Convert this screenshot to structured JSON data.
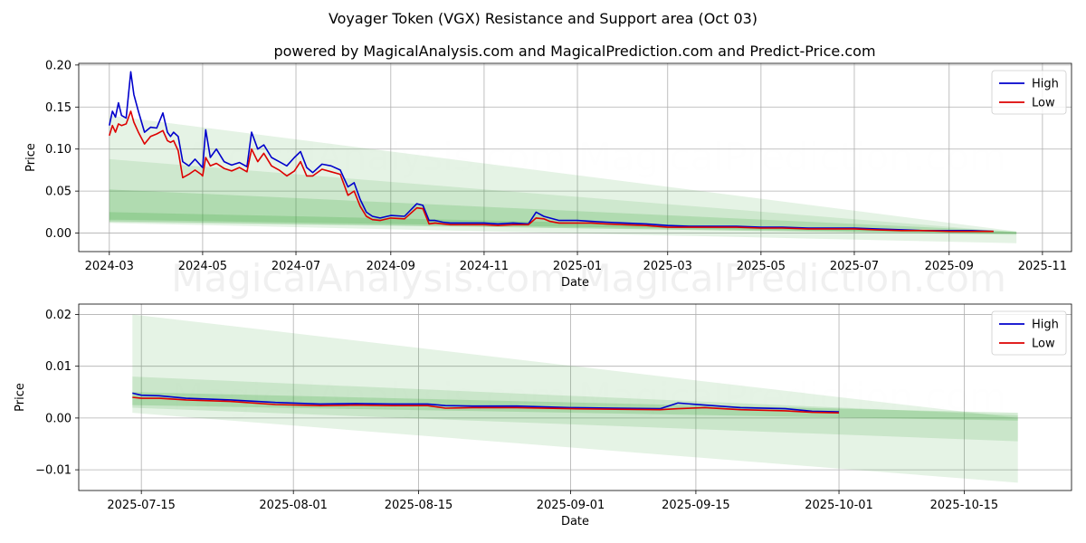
{
  "suptitle": "Voyager Token (VGX) Resistance and Support area (Oct 03)",
  "watermark_text": "MagicalAnalysis.com   MagicalPrediction.com",
  "chart_data": [
    {
      "type": "line",
      "title": "powered by MagicalAnalysis.com and MagicalPrediction.com and Predict-Price.com",
      "xlabel": "Date",
      "ylabel": "Price",
      "xlim": [
        "2024-02-10",
        "2025-11-20"
      ],
      "ylim": [
        -0.022,
        0.202
      ],
      "yticks": [
        0.0,
        0.05,
        0.1,
        0.15,
        0.2
      ],
      "ytick_labels": [
        "0.00",
        "0.05",
        "0.10",
        "0.15",
        "0.20"
      ],
      "xticks": [
        "2024-03-01",
        "2024-05-01",
        "2024-07-01",
        "2024-09-01",
        "2024-11-01",
        "2025-01-01",
        "2025-03-01",
        "2025-05-01",
        "2025-07-01",
        "2025-09-01",
        "2025-11-01"
      ],
      "xtick_labels": [
        "2024-03",
        "2024-05",
        "2024-07",
        "2024-09",
        "2024-11",
        "2025-01",
        "2025-03",
        "2025-05",
        "2025-07",
        "2025-09",
        "2025-11"
      ],
      "legend": [
        "High",
        "Low"
      ],
      "legend_loc": "upper right",
      "grid": true,
      "bands": [
        {
          "x": [
            "2024-03-01",
            "2025-10-15"
          ],
          "upper": [
            0.14,
            0.002
          ],
          "lower": [
            0.012,
            -0.012
          ],
          "color": "#2ca02c",
          "opacity": 0.12
        },
        {
          "x": [
            "2024-03-01",
            "2025-10-15"
          ],
          "upper": [
            0.088,
            0.001
          ],
          "lower": [
            0.013,
            -0.001
          ],
          "color": "#2ca02c",
          "opacity": 0.12
        },
        {
          "x": [
            "2024-03-01",
            "2025-10-15"
          ],
          "upper": [
            0.052,
            0.002
          ],
          "lower": [
            0.014,
            -0.002
          ],
          "color": "#2ca02c",
          "opacity": 0.18
        },
        {
          "x": [
            "2024-03-01",
            "2025-10-15"
          ],
          "upper": [
            0.025,
            0.001
          ],
          "lower": [
            0.016,
            -0.0005
          ],
          "color": "#2ca02c",
          "opacity": 0.2
        }
      ],
      "series": [
        {
          "name": "High",
          "color": "#0000cc",
          "x": [
            "2024-03-01",
            "2024-03-03",
            "2024-03-05",
            "2024-03-07",
            "2024-03-09",
            "2024-03-12",
            "2024-03-15",
            "2024-03-17",
            "2024-03-20",
            "2024-03-24",
            "2024-03-28",
            "2024-04-01",
            "2024-04-05",
            "2024-04-08",
            "2024-04-10",
            "2024-04-12",
            "2024-04-15",
            "2024-04-18",
            "2024-04-22",
            "2024-04-26",
            "2024-04-30",
            "2024-05-01",
            "2024-05-03",
            "2024-05-06",
            "2024-05-10",
            "2024-05-15",
            "2024-05-20",
            "2024-05-25",
            "2024-05-30",
            "2024-06-02",
            "2024-06-06",
            "2024-06-10",
            "2024-06-15",
            "2024-06-20",
            "2024-06-25",
            "2024-06-30",
            "2024-07-04",
            "2024-07-08",
            "2024-07-12",
            "2024-07-18",
            "2024-07-24",
            "2024-07-30",
            "2024-08-04",
            "2024-08-08",
            "2024-08-12",
            "2024-08-16",
            "2024-08-20",
            "2024-08-25",
            "2024-09-01",
            "2024-09-10",
            "2024-09-18",
            "2024-09-22",
            "2024-09-26",
            "2024-09-30",
            "2024-10-05",
            "2024-10-10",
            "2024-10-20",
            "2024-11-01",
            "2024-11-10",
            "2024-11-20",
            "2024-11-30",
            "2024-12-05",
            "2024-12-10",
            "2024-12-14",
            "2024-12-20",
            "2025-01-01",
            "2025-01-10",
            "2025-01-20",
            "2025-02-01",
            "2025-02-15",
            "2025-03-01",
            "2025-03-15",
            "2025-04-01",
            "2025-04-15",
            "2025-05-01",
            "2025-05-15",
            "2025-06-01",
            "2025-06-15",
            "2025-06-20",
            "2025-07-01",
            "2025-07-15",
            "2025-08-01",
            "2025-08-15",
            "2025-09-01",
            "2025-09-15",
            "2025-09-30"
          ],
          "values": [
            0.128,
            0.145,
            0.138,
            0.155,
            0.14,
            0.137,
            0.192,
            0.165,
            0.145,
            0.12,
            0.126,
            0.125,
            0.143,
            0.12,
            0.115,
            0.12,
            0.115,
            0.085,
            0.08,
            0.088,
            0.08,
            0.078,
            0.123,
            0.09,
            0.1,
            0.085,
            0.081,
            0.084,
            0.079,
            0.12,
            0.1,
            0.105,
            0.09,
            0.085,
            0.08,
            0.09,
            0.097,
            0.078,
            0.072,
            0.082,
            0.08,
            0.075,
            0.055,
            0.06,
            0.04,
            0.025,
            0.02,
            0.018,
            0.021,
            0.02,
            0.035,
            0.033,
            0.015,
            0.015,
            0.013,
            0.012,
            0.012,
            0.012,
            0.011,
            0.012,
            0.011,
            0.025,
            0.02,
            0.018,
            0.015,
            0.015,
            0.014,
            0.013,
            0.012,
            0.011,
            0.009,
            0.008,
            0.008,
            0.008,
            0.007,
            0.007,
            0.006,
            0.006,
            0.006,
            0.006,
            0.005,
            0.004,
            0.003,
            0.003,
            0.003,
            0.002
          ]
        },
        {
          "name": "Low",
          "color": "#dd0000",
          "x": [
            "2024-03-01",
            "2024-03-03",
            "2024-03-05",
            "2024-03-07",
            "2024-03-09",
            "2024-03-12",
            "2024-03-15",
            "2024-03-17",
            "2024-03-20",
            "2024-03-24",
            "2024-03-28",
            "2024-04-01",
            "2024-04-05",
            "2024-04-08",
            "2024-04-10",
            "2024-04-12",
            "2024-04-15",
            "2024-04-18",
            "2024-04-22",
            "2024-04-26",
            "2024-04-30",
            "2024-05-01",
            "2024-05-03",
            "2024-05-06",
            "2024-05-10",
            "2024-05-15",
            "2024-05-20",
            "2024-05-25",
            "2024-05-30",
            "2024-06-02",
            "2024-06-06",
            "2024-06-10",
            "2024-06-15",
            "2024-06-20",
            "2024-06-25",
            "2024-06-30",
            "2024-07-04",
            "2024-07-08",
            "2024-07-12",
            "2024-07-18",
            "2024-07-24",
            "2024-07-30",
            "2024-08-04",
            "2024-08-08",
            "2024-08-12",
            "2024-08-16",
            "2024-08-20",
            "2024-08-25",
            "2024-09-01",
            "2024-09-10",
            "2024-09-18",
            "2024-09-22",
            "2024-09-26",
            "2024-09-30",
            "2024-10-05",
            "2024-10-10",
            "2024-10-20",
            "2024-11-01",
            "2024-11-10",
            "2024-11-20",
            "2024-11-30",
            "2024-12-05",
            "2024-12-10",
            "2024-12-14",
            "2024-12-20",
            "2025-01-01",
            "2025-01-10",
            "2025-01-20",
            "2025-02-01",
            "2025-02-15",
            "2025-03-01",
            "2025-03-15",
            "2025-04-01",
            "2025-04-15",
            "2025-05-01",
            "2025-05-15",
            "2025-06-01",
            "2025-06-15",
            "2025-06-20",
            "2025-07-01",
            "2025-07-15",
            "2025-08-01",
            "2025-08-15",
            "2025-09-01",
            "2025-09-15",
            "2025-09-30"
          ],
          "values": [
            0.116,
            0.128,
            0.12,
            0.13,
            0.128,
            0.13,
            0.145,
            0.132,
            0.12,
            0.106,
            0.115,
            0.118,
            0.122,
            0.11,
            0.108,
            0.11,
            0.098,
            0.066,
            0.07,
            0.075,
            0.07,
            0.068,
            0.09,
            0.08,
            0.083,
            0.077,
            0.074,
            0.078,
            0.073,
            0.1,
            0.085,
            0.095,
            0.08,
            0.075,
            0.068,
            0.074,
            0.085,
            0.068,
            0.068,
            0.076,
            0.073,
            0.07,
            0.045,
            0.05,
            0.032,
            0.02,
            0.016,
            0.015,
            0.018,
            0.017,
            0.03,
            0.029,
            0.011,
            0.012,
            0.011,
            0.01,
            0.01,
            0.01,
            0.009,
            0.01,
            0.01,
            0.018,
            0.017,
            0.014,
            0.012,
            0.012,
            0.012,
            0.011,
            0.01,
            0.009,
            0.007,
            0.007,
            0.007,
            0.007,
            0.006,
            0.006,
            0.005,
            0.005,
            0.005,
            0.005,
            0.004,
            0.003,
            0.003,
            0.002,
            0.002,
            0.002
          ]
        }
      ]
    },
    {
      "type": "line",
      "title": "",
      "xlabel": "Date",
      "ylabel": "Price",
      "xlim": [
        "2025-07-08",
        "2025-10-27"
      ],
      "ylim": [
        -0.014,
        0.022
      ],
      "yticks": [
        -0.01,
        0.0,
        0.01,
        0.02
      ],
      "ytick_labels": [
        "−0.01",
        "0.00",
        "0.01",
        "0.02"
      ],
      "xticks": [
        "2025-07-15",
        "2025-08-01",
        "2025-08-15",
        "2025-09-01",
        "2025-09-15",
        "2025-10-01",
        "2025-10-15"
      ],
      "xtick_labels": [
        "2025-07-15",
        "2025-08-01",
        "2025-08-15",
        "2025-09-01",
        "2025-09-15",
        "2025-10-01",
        "2025-10-15"
      ],
      "legend": [
        "High",
        "Low"
      ],
      "legend_loc": "upper right",
      "grid": true,
      "bands": [
        {
          "x": [
            "2025-07-14",
            "2025-10-21"
          ],
          "upper": [
            0.02,
            0.0
          ],
          "lower": [
            0.001,
            -0.0125
          ],
          "color": "#2ca02c",
          "opacity": 0.12
        },
        {
          "x": [
            "2025-07-14",
            "2025-10-21"
          ],
          "upper": [
            0.008,
            0.0005
          ],
          "lower": [
            0.002,
            -0.0045
          ],
          "color": "#2ca02c",
          "opacity": 0.15
        },
        {
          "x": [
            "2025-07-14",
            "2025-10-21"
          ],
          "upper": [
            0.005,
            0.001
          ],
          "lower": [
            0.0025,
            -0.0005
          ],
          "color": "#2ca02c",
          "opacity": 0.2
        }
      ],
      "series": [
        {
          "name": "High",
          "color": "#0000cc",
          "x": [
            "2025-07-14",
            "2025-07-15",
            "2025-07-17",
            "2025-07-20",
            "2025-07-25",
            "2025-07-30",
            "2025-08-04",
            "2025-08-08",
            "2025-08-12",
            "2025-08-16",
            "2025-08-18",
            "2025-08-21",
            "2025-08-26",
            "2025-09-01",
            "2025-09-06",
            "2025-09-11",
            "2025-09-13",
            "2025-09-16",
            "2025-09-20",
            "2025-09-25",
            "2025-09-28",
            "2025-10-01"
          ],
          "values": [
            0.0048,
            0.0044,
            0.0043,
            0.0038,
            0.0035,
            0.003,
            0.0027,
            0.0028,
            0.0027,
            0.0027,
            0.0024,
            0.0023,
            0.0023,
            0.002,
            0.0019,
            0.0018,
            0.0029,
            0.0025,
            0.002,
            0.0018,
            0.0013,
            0.0012
          ]
        },
        {
          "name": "Low",
          "color": "#dd0000",
          "x": [
            "2025-07-14",
            "2025-07-15",
            "2025-07-17",
            "2025-07-20",
            "2025-07-25",
            "2025-07-30",
            "2025-08-04",
            "2025-08-08",
            "2025-08-12",
            "2025-08-16",
            "2025-08-18",
            "2025-08-21",
            "2025-08-26",
            "2025-09-01",
            "2025-09-06",
            "2025-09-11",
            "2025-09-13",
            "2025-09-16",
            "2025-09-20",
            "2025-09-25",
            "2025-09-28",
            "2025-10-01"
          ],
          "values": [
            0.004,
            0.0038,
            0.0038,
            0.0035,
            0.0032,
            0.0026,
            0.0024,
            0.0025,
            0.0024,
            0.0024,
            0.0019,
            0.002,
            0.002,
            0.0018,
            0.0017,
            0.0016,
            0.0018,
            0.002,
            0.0016,
            0.0014,
            0.0011,
            0.001
          ]
        }
      ]
    }
  ]
}
